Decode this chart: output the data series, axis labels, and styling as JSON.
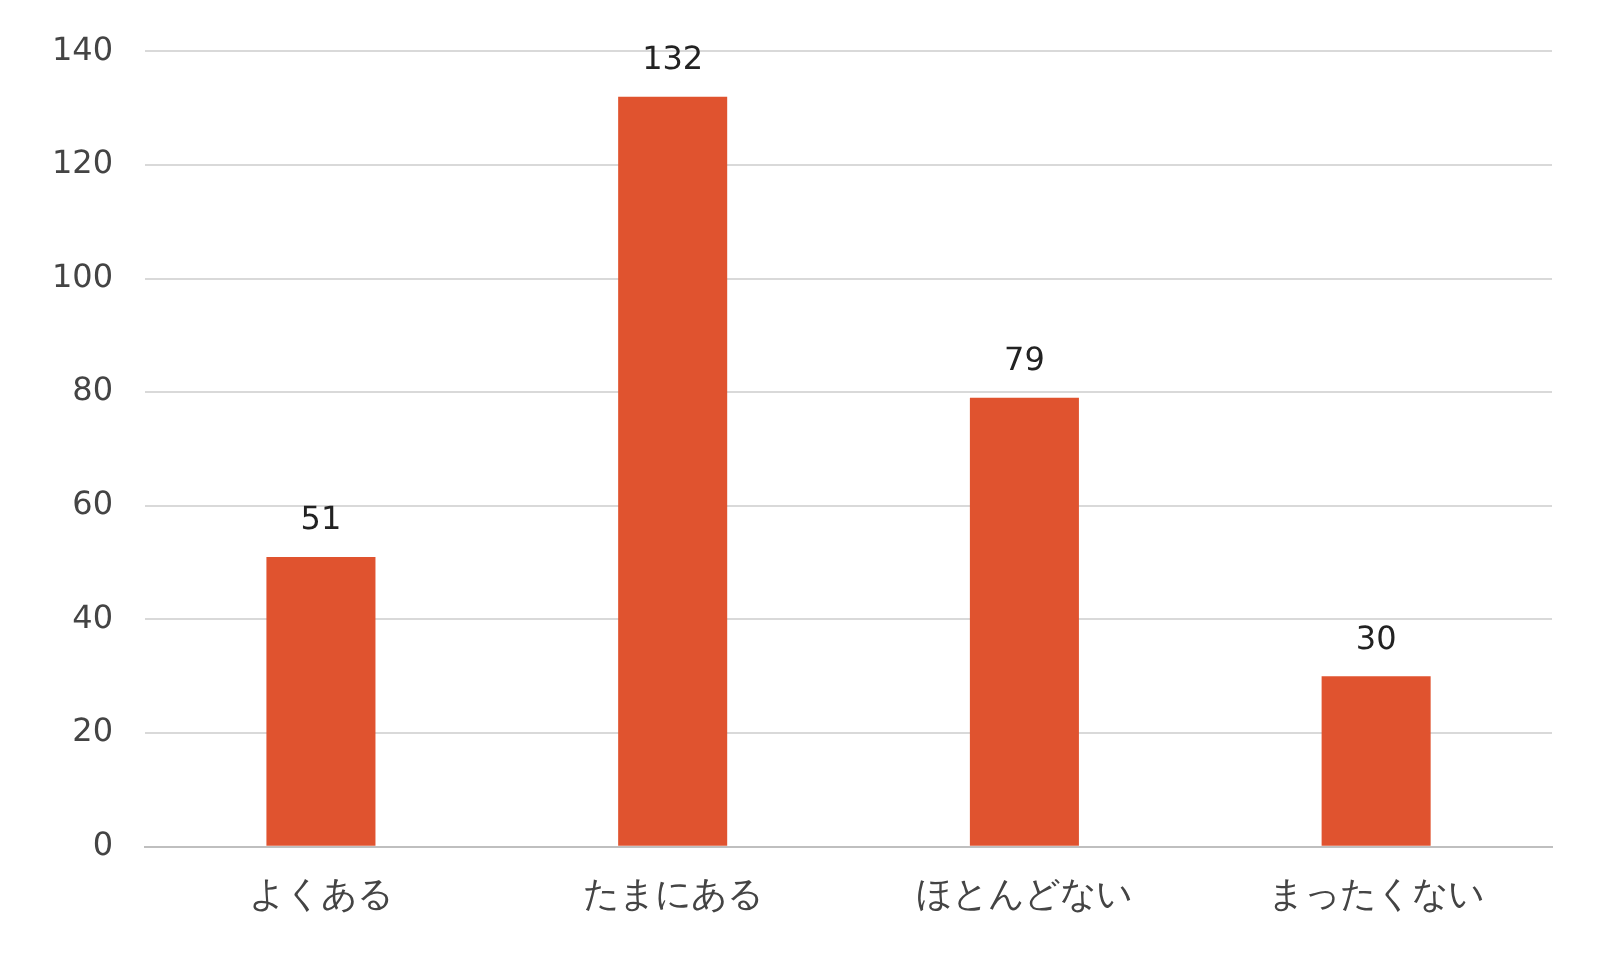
{
  "chart_data": {
    "type": "bar",
    "categories": [
      "よくある",
      "たまにある",
      "ほとんどない",
      "まったくない"
    ],
    "values": [
      51,
      132,
      79,
      30
    ],
    "color": "#e0532f",
    "ylim": [
      0,
      140
    ],
    "yticks": [
      0,
      20,
      40,
      60,
      80,
      100,
      120,
      140
    ],
    "grid": "y",
    "data_labels": true,
    "legend": false
  }
}
